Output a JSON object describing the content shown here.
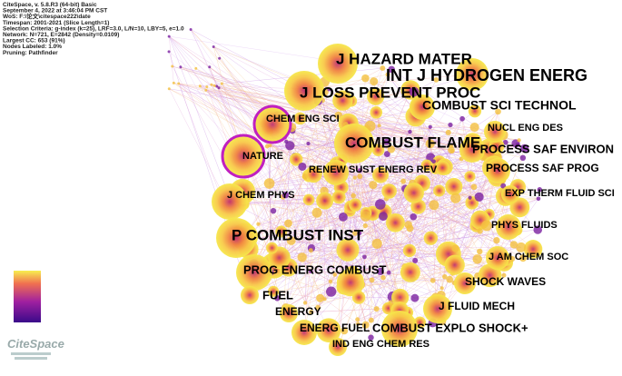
{
  "header": {
    "lines": [
      "CiteSpace, v. 5.8.R3 (64-bit) Basic",
      "September 4, 2022 at 3:46:04 PM CST",
      "WoS: F:\\论文\\citespace222\\date",
      "Timespan: 2001-2021 (Slice Length=1)",
      "Selection Criteria: g-index (k=25), LRF=3.0, L/N=10, LBY=5, e=1.0",
      "Network: N=721, E=2842 (Density=0.0109)",
      "Largest CC: 653 (91%)",
      "Nodes Labeled: 1.0%",
      "Pruning: Pathfinder"
    ]
  },
  "nodes": [
    {
      "label": "J HAZARD MATER"
    },
    {
      "label": "INT J HYDROGEN ENERG"
    },
    {
      "label": "J LOSS PREVENT PROC"
    },
    {
      "label": "COMBUST SCI TECHNOL"
    },
    {
      "label": "CHEM ENG SCI"
    },
    {
      "label": "NUCL ENG DES"
    },
    {
      "label": "COMBUST FLAME"
    },
    {
      "label": "PROCESS SAF ENVIRON"
    },
    {
      "label": "NATURE"
    },
    {
      "label": "PROCESS SAF PROG"
    },
    {
      "label": "RENEW SUST ENERG REV"
    },
    {
      "label": "J CHEM PHYS"
    },
    {
      "label": "EXP THERM FLUID SCI"
    },
    {
      "label": "P COMBUST INST"
    },
    {
      "label": "PHYS FLUIDS"
    },
    {
      "label": "J AM CHEM SOC"
    },
    {
      "label": "PROG ENERG COMBUST"
    },
    {
      "label": "SHOCK WAVES"
    },
    {
      "label": "FUEL"
    },
    {
      "label": "J FLUID MECH"
    },
    {
      "label": "ENERGY"
    },
    {
      "label": "ENERG FUEL"
    },
    {
      "label": "COMBUST EXPLO SHOCK+"
    },
    {
      "label": "IND ENG CHEM RES"
    }
  ],
  "logo": "CiteSpace"
}
